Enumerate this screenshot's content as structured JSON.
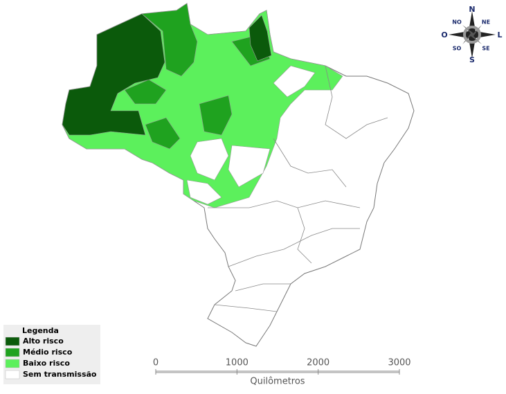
{
  "legend": {
    "title": "Legenda",
    "items": [
      {
        "label": "Alto risco",
        "color": "#0b5a0b"
      },
      {
        "label": "Médio risco",
        "color": "#1fa21f"
      },
      {
        "label": "Baixo risco",
        "color": "#5cf05c"
      },
      {
        "label": "Sem transmissão",
        "color": "#ffffff"
      }
    ]
  },
  "scale_bar": {
    "ticks": [
      0,
      1000,
      2000,
      3000
    ],
    "unit": "Quilômetros"
  },
  "compass": {
    "north": "N",
    "northeast": "NE",
    "east": "L",
    "southeast": "SE",
    "south": "S",
    "southwest": "SO",
    "west": "O",
    "northwest": "NO"
  }
}
